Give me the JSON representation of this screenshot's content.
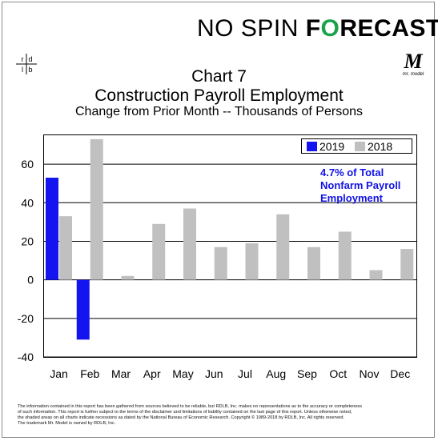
{
  "header": {
    "brand_prefix": "NO SPIN ",
    "brand_f": "F",
    "brand_o": "O",
    "brand_rest": "RECAST",
    "logo_left_letters": [
      "r",
      "d",
      "l",
      "b"
    ],
    "logo_right_letter": "M",
    "logo_right_caption": "mr. model"
  },
  "title": {
    "line1": "Chart 7",
    "line2": "Construction Payroll Employment",
    "line3": "Change from Prior Month -- Thousands of Persons"
  },
  "legend": {
    "items": [
      {
        "label": "2019",
        "color": "#1414f0"
      },
      {
        "label": "2018",
        "color": "#c0c0c0"
      }
    ]
  },
  "annotation": {
    "lines": [
      "4.7% of Total",
      "Nonfarm Payroll",
      "Employment"
    ],
    "color": "#1212e6"
  },
  "chart_data": {
    "type": "bar",
    "categories": [
      "Jan",
      "Feb",
      "Mar",
      "Apr",
      "May",
      "Jun",
      "Jul",
      "Aug",
      "Sep",
      "Oct",
      "Nov",
      "Dec"
    ],
    "series": [
      {
        "name": "2019",
        "color": "#1414f0",
        "values": [
          53,
          -31,
          null,
          null,
          null,
          null,
          null,
          null,
          null,
          null,
          null,
          null
        ]
      },
      {
        "name": "2018",
        "color": "#c0c0c0",
        "values": [
          33,
          73,
          2,
          29,
          37,
          17,
          19,
          34,
          17,
          25,
          5,
          16
        ]
      }
    ],
    "ylim": [
      -40,
      75
    ],
    "yticks": [
      "-40",
      "-20",
      "0",
      "20",
      "40",
      "60"
    ],
    "ytick_values": [
      -40,
      -20,
      0,
      20,
      40,
      60
    ],
    "grid": true,
    "legend_position": "top-right"
  },
  "footer": {
    "line1": "The information contained in this report has been gathered from sources believed to be reliable, but RDLB, Inc. makes no representations as to the accuracy or completeness",
    "line2": "of such information. This report is further subject to the terms of the disclaimer and limitations of liability contained on the last page of this report. Unless otherwise noted,",
    "line3": "the shaded areas on all charts indicate recessions as dated by the National Bureau of Economic Research. Copyright © 1989-2018 by RDLB, Inc. All rights reserved.",
    "line4": "The trademark Mr. Model is owned by RDLB, Inc."
  }
}
